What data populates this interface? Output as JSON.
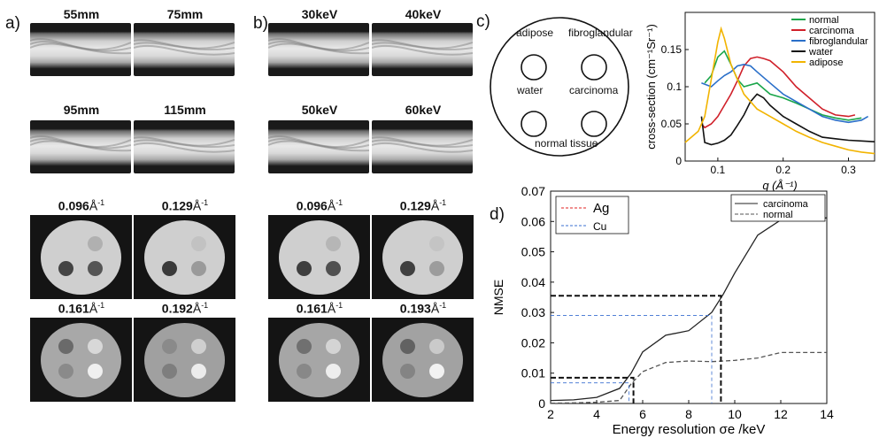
{
  "panels": {
    "a": "a)",
    "b": "b)",
    "c": "c)",
    "d": "d)"
  },
  "panel_a": {
    "sinogram_titles": [
      "55mm",
      "75mm",
      "95mm",
      "115mm"
    ],
    "recon_titles": [
      {
        "value": "0.096",
        "unit": "Å",
        "exp": "-1"
      },
      {
        "value": "0.129",
        "unit": "Å",
        "exp": "-1"
      },
      {
        "value": "0.161",
        "unit": "Å",
        "exp": "-1"
      },
      {
        "value": "0.192",
        "unit": "Å",
        "exp": "-1"
      }
    ]
  },
  "panel_b": {
    "sinogram_titles": [
      "30keV",
      "40keV",
      "50keV",
      "60keV"
    ],
    "recon_titles": [
      {
        "value": "0.096",
        "unit": "Å",
        "exp": "-1"
      },
      {
        "value": "0.129",
        "unit": "Å",
        "exp": "-1"
      },
      {
        "value": "0.161",
        "unit": "Å",
        "exp": "-1"
      },
      {
        "value": "0.193",
        "unit": "Å",
        "exp": "-1"
      }
    ]
  },
  "panel_c_diagram": {
    "labels": [
      "adipose",
      "fibroglandular",
      "water",
      "carcinoma",
      "normal tissue"
    ]
  },
  "colors": {
    "normal": "#1aa64a",
    "carcinoma": "#d0202a",
    "fibroglandular": "#2a6fc9",
    "water": "#111111",
    "adipose": "#f2b400",
    "ag": "#e02020",
    "cu": "#3a6fd0"
  },
  "chart_data": [
    {
      "type": "line",
      "panel": "c",
      "xlabel": "q (Å⁻¹)",
      "ylabel": "cross-section (cm⁻¹Sr⁻¹)",
      "xlim": [
        0.05,
        0.34
      ],
      "ylim": [
        0,
        0.2
      ],
      "xticks": [
        "0.1",
        "0.2",
        "0.3"
      ],
      "yticks": [
        "0",
        "0.05",
        "0.1",
        "0.15"
      ],
      "legend_position": "top-right",
      "series": [
        {
          "name": "normal",
          "color": "#1aa64a",
          "x": [
            0.08,
            0.09,
            0.1,
            0.11,
            0.12,
            0.13,
            0.14,
            0.16,
            0.18,
            0.2,
            0.22,
            0.24,
            0.26,
            0.28,
            0.3,
            0.32
          ],
          "y": [
            0.105,
            0.115,
            0.14,
            0.148,
            0.13,
            0.11,
            0.1,
            0.105,
            0.09,
            0.085,
            0.078,
            0.07,
            0.062,
            0.058,
            0.055,
            0.058
          ]
        },
        {
          "name": "carcinoma",
          "color": "#d0202a",
          "x": [
            0.075,
            0.08,
            0.09,
            0.1,
            0.11,
            0.12,
            0.13,
            0.14,
            0.15,
            0.16,
            0.17,
            0.18,
            0.2,
            0.22,
            0.24,
            0.26,
            0.28,
            0.3,
            0.31
          ],
          "y": [
            0.05,
            0.045,
            0.05,
            0.06,
            0.075,
            0.09,
            0.108,
            0.128,
            0.138,
            0.14,
            0.138,
            0.135,
            0.12,
            0.1,
            0.085,
            0.07,
            0.062,
            0.06,
            0.062
          ]
        },
        {
          "name": "fibroglandular",
          "color": "#2a6fc9",
          "x": [
            0.075,
            0.09,
            0.1,
            0.11,
            0.12,
            0.13,
            0.14,
            0.15,
            0.16,
            0.18,
            0.2,
            0.22,
            0.24,
            0.26,
            0.28,
            0.3,
            0.32,
            0.33
          ],
          "y": [
            0.105,
            0.1,
            0.108,
            0.115,
            0.12,
            0.128,
            0.13,
            0.128,
            0.12,
            0.105,
            0.09,
            0.08,
            0.07,
            0.06,
            0.055,
            0.052,
            0.055,
            0.06
          ]
        },
        {
          "name": "water",
          "color": "#111111",
          "x": [
            0.075,
            0.08,
            0.09,
            0.1,
            0.11,
            0.12,
            0.13,
            0.14,
            0.15,
            0.16,
            0.17,
            0.18,
            0.2,
            0.22,
            0.24,
            0.26,
            0.28,
            0.3,
            0.32,
            0.34
          ],
          "y": [
            0.06,
            0.025,
            0.022,
            0.024,
            0.028,
            0.035,
            0.048,
            0.062,
            0.08,
            0.09,
            0.085,
            0.075,
            0.06,
            0.05,
            0.04,
            0.032,
            0.03,
            0.028,
            0.027,
            0.026
          ]
        },
        {
          "name": "adipose",
          "color": "#f2b400",
          "x": [
            0.05,
            0.07,
            0.08,
            0.09,
            0.1,
            0.105,
            0.11,
            0.12,
            0.13,
            0.14,
            0.15,
            0.16,
            0.18,
            0.2,
            0.22,
            0.24,
            0.26,
            0.28,
            0.3,
            0.32,
            0.34
          ],
          "y": [
            0.025,
            0.04,
            0.06,
            0.11,
            0.16,
            0.178,
            0.165,
            0.13,
            0.11,
            0.09,
            0.08,
            0.07,
            0.06,
            0.05,
            0.04,
            0.032,
            0.025,
            0.02,
            0.015,
            0.012,
            0.01
          ]
        }
      ]
    },
    {
      "type": "line",
      "panel": "d",
      "xlabel": "Energy resolution σe /keV",
      "ylabel": "NMSE",
      "xlim": [
        2,
        14
      ],
      "ylim": [
        0,
        0.07
      ],
      "xticks": [
        "2",
        "4",
        "6",
        "8",
        "10",
        "12",
        "14"
      ],
      "yticks": [
        "0",
        "0.01",
        "0.02",
        "0.03",
        "0.04",
        "0.05",
        "0.06",
        "0.07"
      ],
      "legend_position": "top-right",
      "series": [
        {
          "name": "carcinoma",
          "style": "solid",
          "color": "#222222",
          "x": [
            2,
            3,
            4,
            5,
            5.5,
            6,
            7,
            8,
            9,
            9.5,
            10,
            11,
            12,
            13,
            14
          ],
          "y": [
            0.001,
            0.0012,
            0.002,
            0.005,
            0.01,
            0.017,
            0.0225,
            0.024,
            0.03,
            0.036,
            0.043,
            0.0555,
            0.0605,
            0.0605,
            0.0612
          ]
        },
        {
          "name": "normal",
          "style": "dashed",
          "color": "#555555",
          "x": [
            2,
            3,
            4,
            5,
            5.5,
            6,
            7,
            8,
            9,
            10,
            11,
            12,
            13,
            14
          ],
          "y": [
            0.0001,
            0.0002,
            0.0004,
            0.001,
            0.0065,
            0.0105,
            0.0135,
            0.014,
            0.0138,
            0.0142,
            0.015,
            0.0168,
            0.0168,
            0.0168
          ]
        }
      ],
      "markers": [
        {
          "name": "Ag",
          "color": "#e02020",
          "lines": [
            {
              "x": 5.6,
              "y": 0.0085
            },
            {
              "x": 9.4,
              "y": 0.0355
            }
          ]
        },
        {
          "name": "Cu",
          "color": "#3a6fd0",
          "lines": [
            {
              "x": 5.4,
              "y": 0.0068
            },
            {
              "x": 9.0,
              "y": 0.029
            }
          ]
        }
      ]
    }
  ]
}
